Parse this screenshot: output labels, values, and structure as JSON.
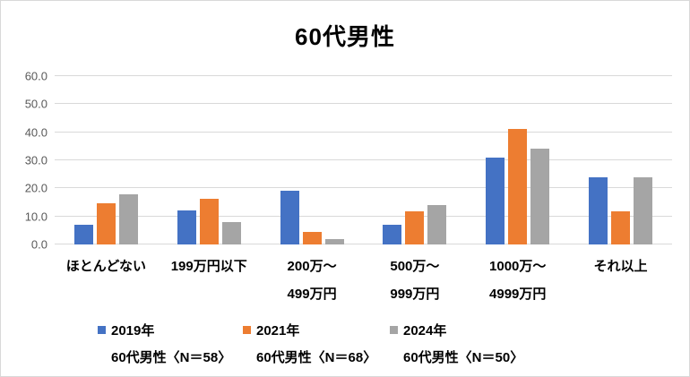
{
  "title": "60代男性",
  "colors": {
    "series_blue": "#4472C4",
    "series_orange": "#ED7D31",
    "series_gray": "#A5A5A5",
    "gridline": "#D9D9D9",
    "y_tick_text": "#595959",
    "label_text": "#000000"
  },
  "chart_data": {
    "type": "bar",
    "title": "60代男性",
    "categories": [
      "ほとんどない",
      "199万円以下",
      "200万〜\n499万円",
      "500万〜\n999万円",
      "1000万〜\n4999万円",
      "それ以上"
    ],
    "series": [
      {
        "name": "2019年",
        "subtitle": "60代男性〈N＝58〉",
        "color": "#4472C4",
        "values": [
          6.9,
          12.1,
          19.0,
          6.9,
          31.0,
          24.1
        ]
      },
      {
        "name": "2021年",
        "subtitle": "60代男性〈N＝68〉",
        "color": "#ED7D31",
        "values": [
          14.7,
          16.2,
          4.4,
          11.8,
          41.2,
          11.8
        ]
      },
      {
        "name": "2024年",
        "subtitle": "60代男性〈N＝50〉",
        "color": "#A5A5A5",
        "values": [
          18.0,
          8.0,
          2.0,
          14.0,
          34.0,
          24.0
        ]
      }
    ],
    "ylim": [
      0,
      60
    ],
    "ytick_step": 10,
    "ytick_labels": [
      "0.0",
      "10.0",
      "20.0",
      "30.0",
      "40.0",
      "50.0",
      "60.0"
    ],
    "grid": true,
    "legend_position": "bottom",
    "legend_x_offsets": [
      108,
      270,
      434
    ]
  }
}
